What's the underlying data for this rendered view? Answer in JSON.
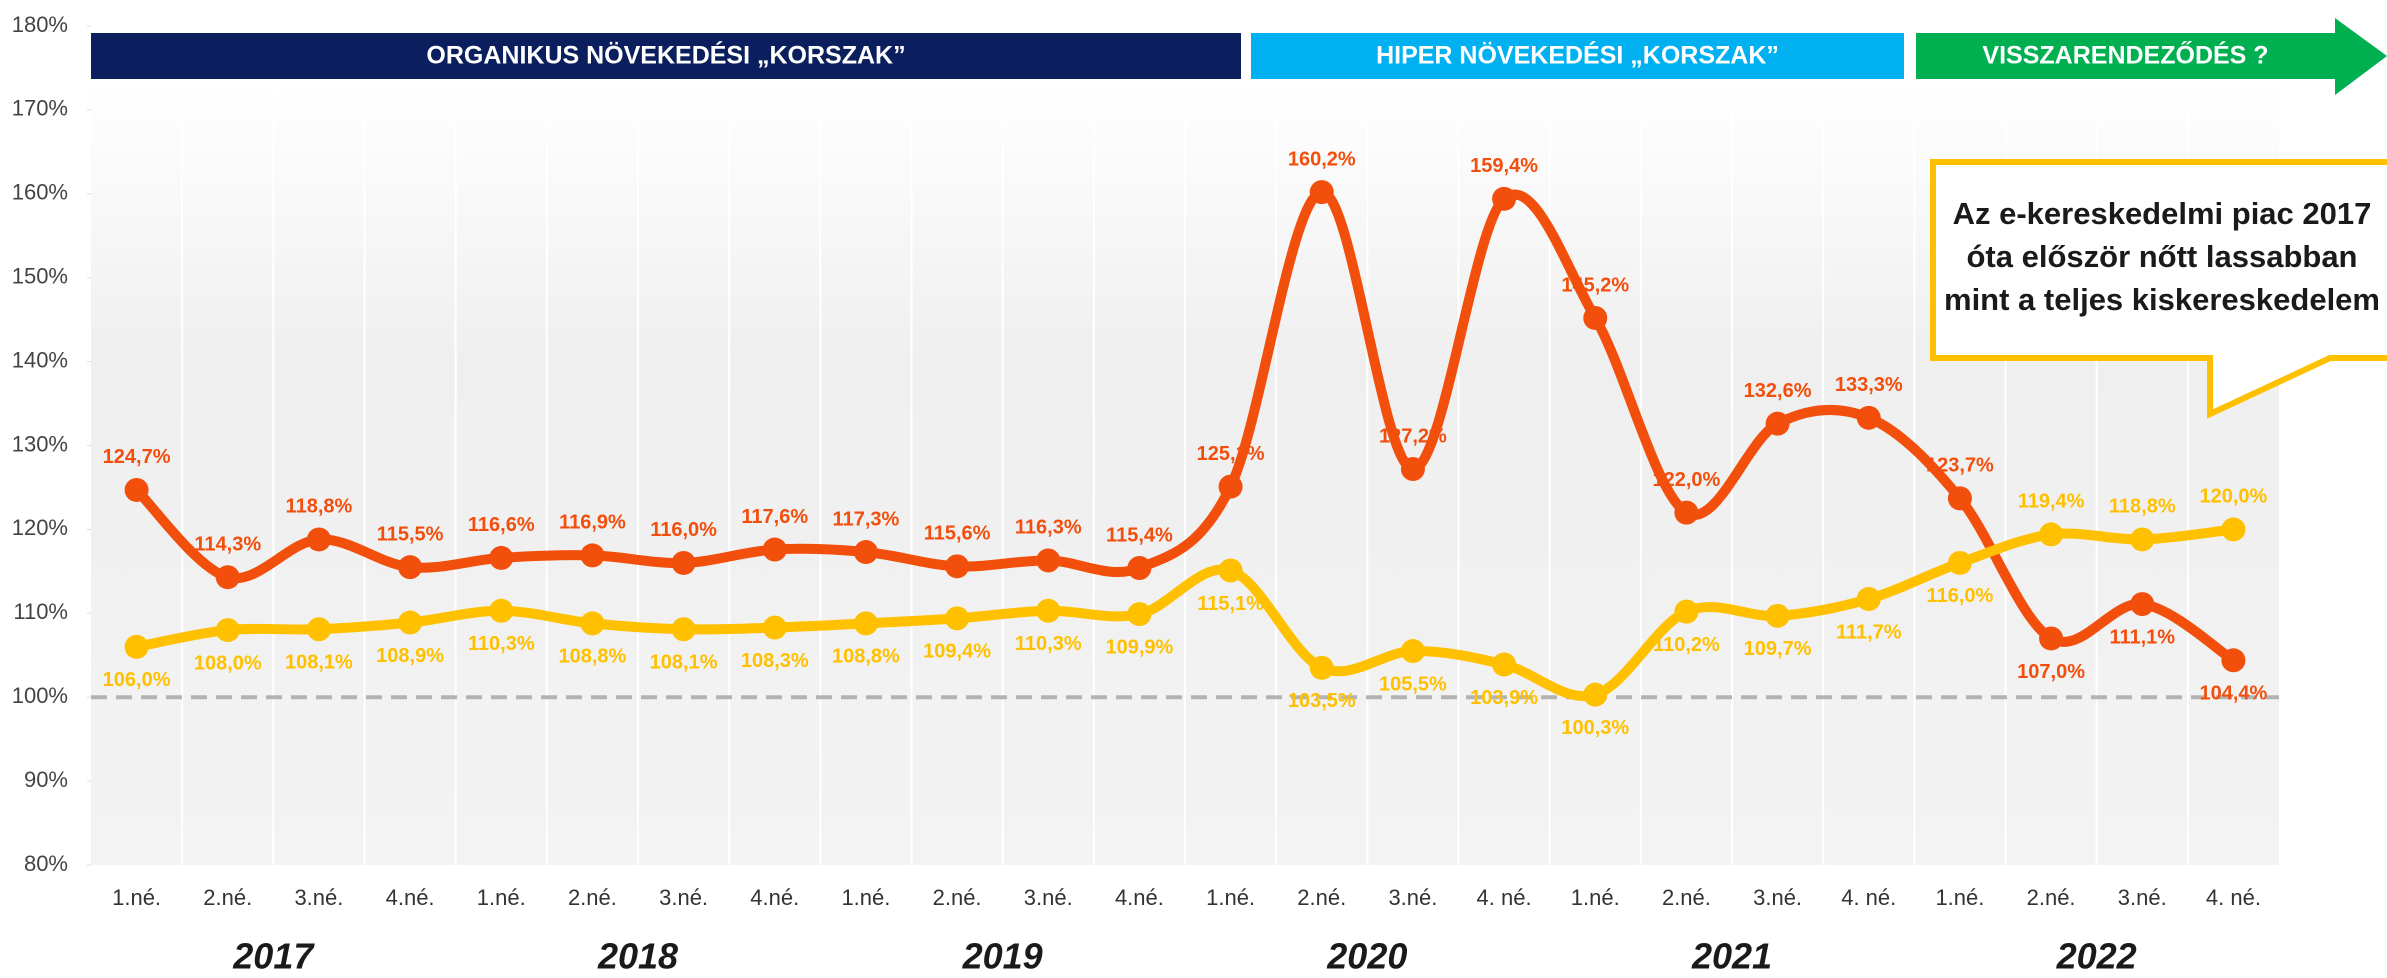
{
  "chart_data": {
    "type": "line",
    "categories": [
      "1.né.",
      "2.né.",
      "3.né.",
      "4.né.",
      "1.né.",
      "2.né.",
      "3.né.",
      "4.né.",
      "1.né.",
      "2.né.",
      "3.né.",
      "4.né.",
      "1.né.",
      "2.né.",
      "3.né.",
      "4. né.",
      "1.né.",
      "2.né.",
      "3.né.",
      "4. né.",
      "1.né.",
      "2.né.",
      "3.né.",
      "4. né."
    ],
    "year_labels": [
      "2017",
      "2018",
      "2019",
      "2020",
      "2021",
      "2022"
    ],
    "periods": [
      {
        "label": "ORGANIKUS NÖVEKEDÉSI „KORSZAK”",
        "color": "#0b1f5e"
      },
      {
        "label": "HIPER NÖVEKEDÉSI „KORSZAK”",
        "color": "#00b0f0"
      },
      {
        "label": "VISSZARENDEZŐDÉS ?",
        "color": "#00b050"
      }
    ],
    "series": [
      {
        "color": "#f24e0c",
        "values": [
          124.7,
          114.3,
          118.8,
          115.5,
          116.6,
          116.9,
          116.0,
          117.6,
          117.3,
          115.6,
          116.3,
          115.4,
          125.1,
          160.2,
          127.2,
          159.4,
          145.2,
          122.0,
          132.6,
          133.3,
          123.7,
          107.0,
          111.1,
          104.4
        ],
        "value_labels": [
          "124,7%",
          "114,3%",
          "118,8%",
          "115,5%",
          "116,6%",
          "116,9%",
          "116,0%",
          "117,6%",
          "117,3%",
          "115,6%",
          "116,3%",
          "115,4%",
          "125,1%",
          "160,2%",
          "127,2%",
          "159,4%",
          "145,2%",
          "122,0%",
          "132,6%",
          "133,3%",
          "123,7%",
          "107,0%",
          "111,1%",
          "104,4%"
        ]
      },
      {
        "color": "#ffc000",
        "values": [
          106.0,
          108.0,
          108.1,
          108.9,
          110.3,
          108.8,
          108.1,
          108.3,
          108.8,
          109.4,
          110.3,
          109.9,
          115.1,
          103.5,
          105.5,
          103.9,
          100.3,
          110.2,
          109.7,
          111.7,
          116.0,
          119.4,
          118.8,
          120.0
        ],
        "value_labels": [
          "106,0%",
          "108,0%",
          "108,1%",
          "108,9%",
          "110,3%",
          "108,8%",
          "108,1%",
          "108,3%",
          "108,8%",
          "109,4%",
          "110,3%",
          "109,9%",
          "115,1%",
          "103,5%",
          "105,5%",
          "103,9%",
          "100,3%",
          "110,2%",
          "109,7%",
          "111,7%",
          "116,0%",
          "119,4%",
          "118,8%",
          "120,0%"
        ]
      }
    ],
    "ylim": [
      80,
      180
    ],
    "yticks": [
      {
        "value": 80,
        "label": "80%"
      },
      {
        "value": 90,
        "label": "90%"
      },
      {
        "value": 100,
        "label": "100%"
      },
      {
        "value": 110,
        "label": "110%"
      },
      {
        "value": 120,
        "label": "120%"
      },
      {
        "value": 130,
        "label": "130%"
      },
      {
        "value": 140,
        "label": "140%"
      },
      {
        "value": 150,
        "label": "150%"
      },
      {
        "value": 160,
        "label": "160%"
      },
      {
        "value": 170,
        "label": "170%"
      },
      {
        "value": 180,
        "label": "180%"
      }
    ],
    "reference_line": 100,
    "callout": [
      "Az e-kereskedelmi piac 2017",
      "óta először nőtt lassabban",
      "mint a teljes kiskereskedelem"
    ]
  }
}
